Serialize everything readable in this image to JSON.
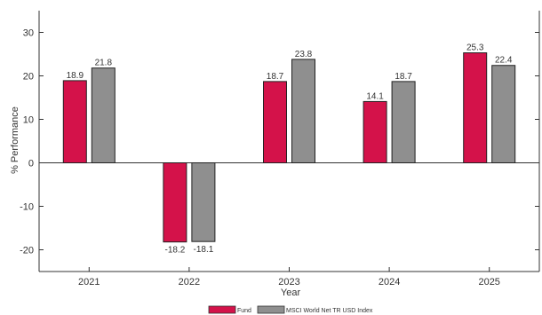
{
  "chart_data": {
    "type": "bar",
    "categories": [
      "2021",
      "2022",
      "2023",
      "2024",
      "2025"
    ],
    "series": [
      {
        "name": "Fund",
        "values": [
          18.9,
          -18.2,
          18.7,
          14.1,
          25.3
        ],
        "color": "#D4124A"
      },
      {
        "name": "MSCI World Net TR USD Index",
        "values": [
          21.8,
          -18.1,
          23.8,
          18.7,
          22.4
        ],
        "color": "#8F8F8F"
      }
    ],
    "data_labels": {
      "Fund": [
        "18.9",
        "-18.2",
        "18.7",
        "14.1",
        "25.3"
      ],
      "MSCI World Net TR USD Index": [
        "21.8",
        "-18.1",
        "23.8",
        "18.7",
        "22.4"
      ]
    },
    "title": "",
    "xlabel": "Year",
    "ylabel": "% Performance",
    "ylim": [
      -25,
      35
    ],
    "yticks": [
      -20,
      -10,
      0,
      10,
      20,
      30
    ],
    "ytick_labels": [
      "-20",
      "-10",
      "0",
      "10",
      "20",
      "30"
    ],
    "grid": false,
    "legend_position": "bottom-center",
    "zero_line": true
  }
}
